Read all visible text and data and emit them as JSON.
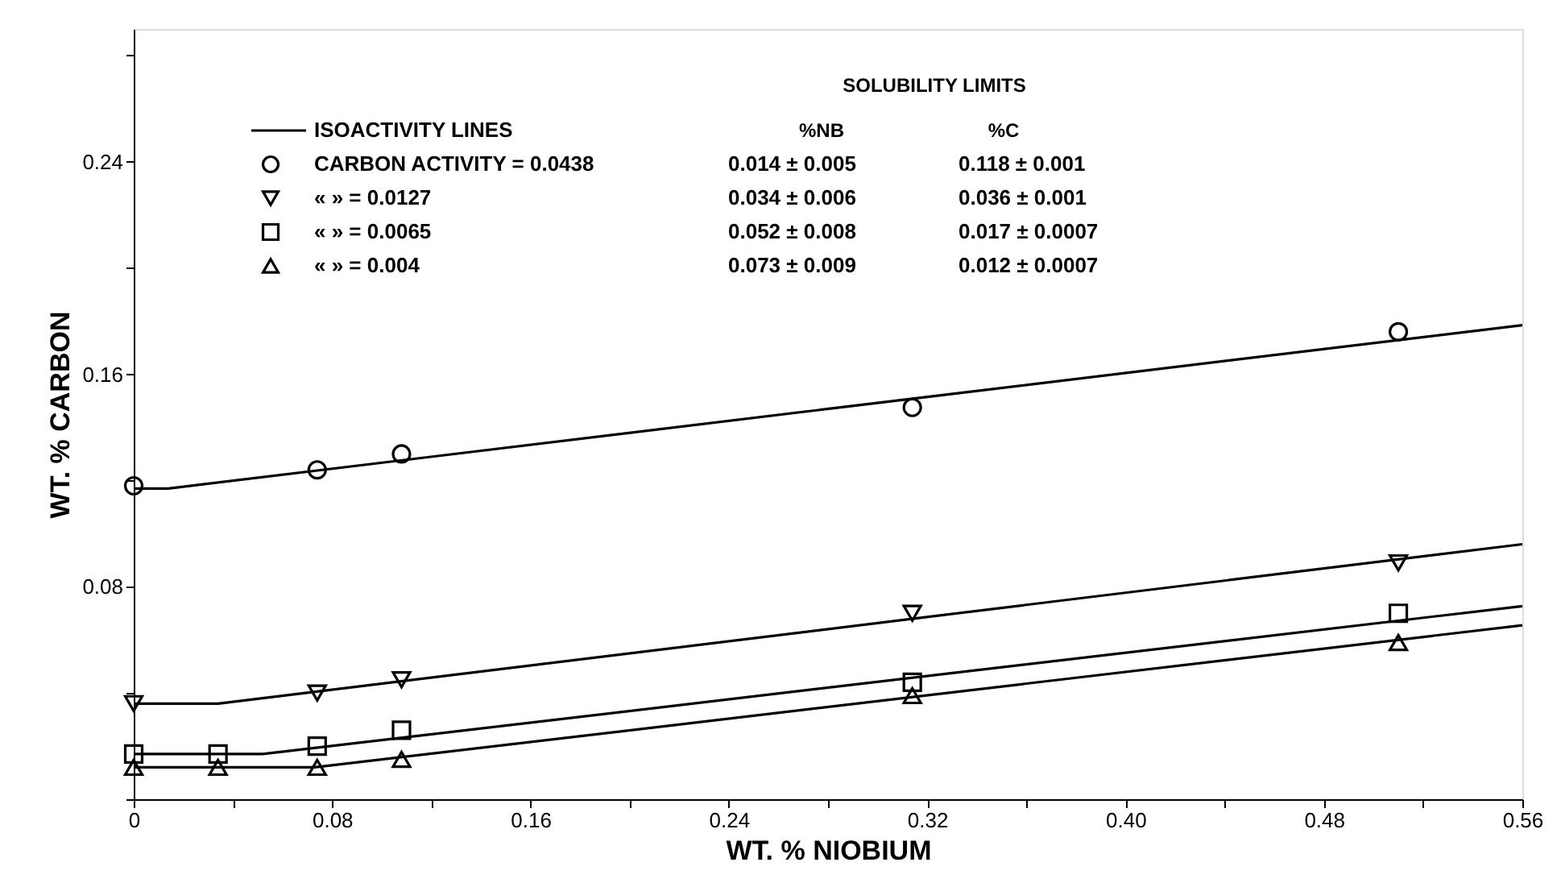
{
  "chart_data": {
    "type": "scatter",
    "xlabel": "WT. % NIOBIUM",
    "ylabel": "WT. % CARBON",
    "xlim": [
      0,
      0.56
    ],
    "ylim": [
      0,
      0.29
    ],
    "xticks": [
      {
        "value": 0,
        "label": "0"
      },
      {
        "value": 0.04,
        "label": null
      },
      0.08,
      {
        "value": 0.12,
        "label": null
      },
      0.16,
      {
        "value": 0.2,
        "label": null
      },
      0.24,
      {
        "value": 0.28,
        "label": null
      },
      0.32,
      {
        "value": 0.36,
        "label": null
      },
      {
        "value": 0.4,
        "label": "0.40"
      },
      {
        "value": 0.44,
        "label": null
      },
      0.48,
      {
        "value": 0.52,
        "label": null
      },
      0.56
    ],
    "yticks": [
      {
        "value": 0,
        "label": null
      },
      {
        "value": 0.04,
        "label": null
      },
      0.08,
      {
        "value": 0.12,
        "label": null
      },
      0.16,
      {
        "value": 0.2,
        "label": null
      },
      0.24,
      {
        "value": 0.28,
        "label": null
      }
    ],
    "grid": false,
    "legend": "top left",
    "annotations": [
      "SOLUBILITY LIMITS",
      "%NB",
      "%C",
      "0.014 ± 0.005",
      "0.118 ± 0.001",
      "0.034 ± 0.006",
      "0.036 ± 0.001",
      "0.052 ± 0.008",
      "0.017 ± 0.0007",
      "0.073 ± 0.009",
      "0.012 ± 0.0007"
    ],
    "series": [
      {
        "type": "line",
        "name": "ISOACTIVITY LINES",
        "color": "#000000",
        "line_style": "solid",
        "x": [
          0,
          0.014,
          0.56
        ],
        "values": [
          0.117,
          0.117,
          0.1785
        ]
      },
      {
        "type": "line",
        "color": "#000000",
        "line_style": "solid",
        "x": [
          0,
          0.034,
          0.56
        ],
        "values": [
          0.036,
          0.036,
          0.096
        ]
      },
      {
        "type": "line",
        "color": "#000000",
        "line_style": "solid",
        "x": [
          0,
          0.052,
          0.56
        ],
        "values": [
          0.017,
          0.017,
          0.0727
        ]
      },
      {
        "type": "line",
        "color": "#000000",
        "line_style": "solid",
        "x": [
          0,
          0.073,
          0.56
        ],
        "values": [
          0.012,
          0.012,
          0.0655
        ]
      },
      {
        "name": "CARBON ACTIVITY = 0.0438",
        "color": "#000000",
        "marker": "circle",
        "x": [
          0,
          0.074,
          0.108,
          0.314,
          0.51
        ],
        "values": [
          0.118,
          0.124,
          0.13,
          0.1475,
          0.176
        ]
      },
      {
        "name": "« » = 0.0127",
        "color": "#000000",
        "marker": "triangle-down",
        "x": [
          0,
          0.074,
          0.108,
          0.314,
          0.51
        ],
        "values": [
          0.036,
          0.04,
          0.045,
          0.07,
          0.089
        ]
      },
      {
        "name": "« » = 0.0065",
        "color": "#000000",
        "marker": "square",
        "x": [
          0,
          0.034,
          0.074,
          0.108,
          0.314,
          0.51
        ],
        "values": [
          0.017,
          0.017,
          0.02,
          0.026,
          0.044,
          0.07
        ]
      },
      {
        "name": "« » = 0.004",
        "color": "#000000",
        "marker": "triangle",
        "x": [
          0,
          0.034,
          0.074,
          0.108,
          0.314,
          0.51
        ],
        "values": [
          0.012,
          0.012,
          0.012,
          0.015,
          0.039,
          0.059
        ]
      }
    ]
  }
}
